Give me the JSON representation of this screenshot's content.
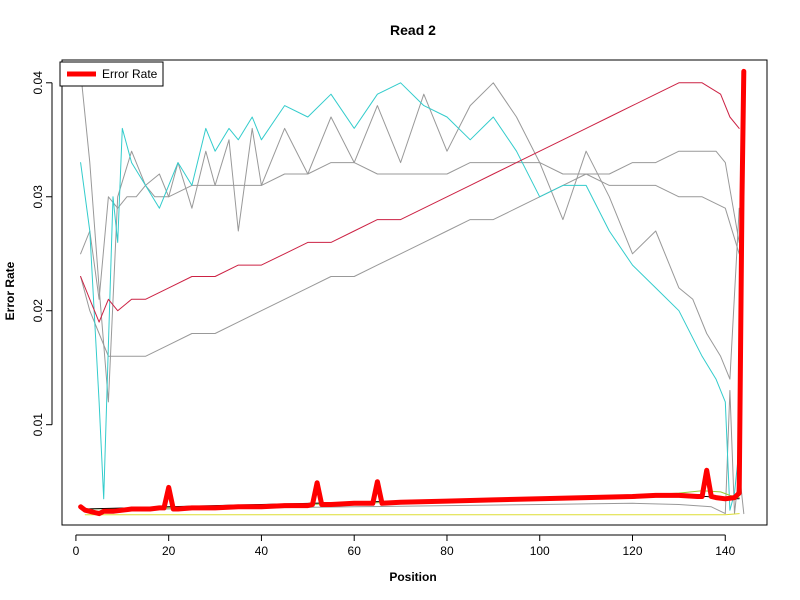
{
  "chart_data": {
    "type": "line",
    "title": "Read 2",
    "xlabel": "Position",
    "ylabel": "Error Rate",
    "xlim": [
      -3,
      149
    ],
    "ylim": [
      0.0012,
      0.042
    ],
    "xticks": [
      0,
      20,
      40,
      60,
      80,
      100,
      120,
      140
    ],
    "yticks": [
      0.01,
      0.02,
      0.03,
      0.04
    ],
    "ytick_labels": [
      "0.01",
      "0.02",
      "0.03",
      "0.04"
    ],
    "grid": false,
    "legend": {
      "position": "top-left",
      "entries": [
        {
          "label": "Error Rate",
          "color": "#ff0000"
        }
      ]
    },
    "series": [
      {
        "style": "thin",
        "color": "#999999",
        "x": [
          1,
          3,
          5,
          7,
          9,
          12,
          15,
          18,
          20,
          22,
          25,
          28,
          30,
          33,
          35,
          38,
          40,
          45,
          50,
          55,
          60,
          65,
          70,
          75,
          80,
          85,
          90,
          95,
          100,
          105,
          110,
          115,
          120,
          125,
          130,
          133,
          136,
          139,
          141,
          143
        ],
        "y": [
          0.041,
          0.033,
          0.022,
          0.012,
          0.03,
          0.034,
          0.031,
          0.032,
          0.03,
          0.033,
          0.029,
          0.034,
          0.031,
          0.035,
          0.027,
          0.036,
          0.031,
          0.036,
          0.032,
          0.037,
          0.033,
          0.038,
          0.033,
          0.039,
          0.034,
          0.038,
          0.04,
          0.037,
          0.033,
          0.028,
          0.034,
          0.03,
          0.025,
          0.027,
          0.022,
          0.021,
          0.018,
          0.016,
          0.014,
          0.029
        ]
      },
      {
        "style": "thin",
        "color": "#999999",
        "x": [
          1,
          3,
          5,
          7,
          9,
          11,
          13,
          15,
          17,
          20,
          25,
          30,
          35,
          40,
          45,
          50,
          55,
          60,
          65,
          70,
          75,
          80,
          85,
          90,
          95,
          100,
          105,
          110,
          115,
          120,
          125,
          130,
          135,
          140,
          143
        ],
        "y": [
          0.025,
          0.027,
          0.021,
          0.03,
          0.029,
          0.03,
          0.03,
          0.031,
          0.03,
          0.03,
          0.031,
          0.031,
          0.031,
          0.031,
          0.032,
          0.032,
          0.033,
          0.033,
          0.032,
          0.032,
          0.032,
          0.032,
          0.033,
          0.033,
          0.033,
          0.033,
          0.032,
          0.032,
          0.031,
          0.031,
          0.031,
          0.03,
          0.03,
          0.029,
          0.025
        ]
      },
      {
        "style": "thin",
        "color": "#999999",
        "x": [
          1,
          3,
          5,
          7,
          9,
          12,
          15,
          20,
          25,
          30,
          35,
          40,
          45,
          50,
          55,
          60,
          65,
          70,
          75,
          80,
          85,
          90,
          95,
          100,
          105,
          110,
          115,
          120,
          125,
          130,
          135,
          138,
          140,
          143
        ],
        "y": [
          0.023,
          0.02,
          0.018,
          0.016,
          0.016,
          0.016,
          0.016,
          0.017,
          0.018,
          0.018,
          0.019,
          0.02,
          0.021,
          0.022,
          0.023,
          0.023,
          0.024,
          0.025,
          0.026,
          0.027,
          0.028,
          0.028,
          0.029,
          0.03,
          0.031,
          0.032,
          0.032,
          0.033,
          0.033,
          0.034,
          0.034,
          0.034,
          0.033,
          0.026
        ]
      },
      {
        "style": "thin",
        "color": "#999999",
        "x": [
          2,
          5,
          8,
          10,
          20,
          40,
          60,
          80,
          100,
          120,
          130,
          137,
          140,
          141,
          142,
          143,
          144
        ],
        "y": [
          0.0025,
          0.0024,
          0.0024,
          0.0025,
          0.0026,
          0.0027,
          0.0028,
          0.0029,
          0.003,
          0.0031,
          0.003,
          0.0028,
          0.0022,
          0.013,
          0.0022,
          0.006,
          0.0022
        ]
      },
      {
        "style": "thin",
        "color": "#33cccc",
        "x": [
          1,
          3,
          5,
          6,
          7,
          8,
          9,
          10,
          12,
          15,
          18,
          20,
          22,
          25,
          28,
          30,
          33,
          35,
          38,
          40,
          45,
          50,
          55,
          60,
          65,
          70,
          75,
          80,
          85,
          90,
          95,
          100,
          105,
          110,
          115,
          120,
          125,
          130,
          135,
          138,
          140,
          141,
          142,
          143
        ],
        "y": [
          0.033,
          0.027,
          0.012,
          0.0035,
          0.017,
          0.03,
          0.026,
          0.036,
          0.033,
          0.031,
          0.029,
          0.031,
          0.033,
          0.031,
          0.036,
          0.034,
          0.036,
          0.035,
          0.037,
          0.035,
          0.038,
          0.037,
          0.039,
          0.036,
          0.039,
          0.04,
          0.038,
          0.037,
          0.035,
          0.037,
          0.034,
          0.03,
          0.031,
          0.031,
          0.027,
          0.024,
          0.022,
          0.02,
          0.016,
          0.014,
          0.012,
          0.0025,
          0.004,
          0.008
        ]
      },
      {
        "style": "thin",
        "color": "#cc2244",
        "x": [
          1,
          3,
          5,
          7,
          9,
          12,
          15,
          20,
          25,
          30,
          35,
          40,
          45,
          50,
          55,
          60,
          65,
          70,
          75,
          80,
          85,
          90,
          95,
          100,
          105,
          110,
          115,
          120,
          125,
          130,
          135,
          139,
          141,
          143
        ],
        "y": [
          0.023,
          0.021,
          0.019,
          0.021,
          0.02,
          0.021,
          0.021,
          0.022,
          0.023,
          0.023,
          0.024,
          0.024,
          0.025,
          0.026,
          0.026,
          0.027,
          0.028,
          0.028,
          0.029,
          0.03,
          0.031,
          0.032,
          0.033,
          0.034,
          0.035,
          0.036,
          0.037,
          0.038,
          0.039,
          0.04,
          0.04,
          0.039,
          0.037,
          0.036
        ]
      },
      {
        "style": "thin",
        "color": "#99cc33",
        "x": [
          2,
          20,
          40,
          60,
          80,
          100,
          120,
          130,
          135,
          139,
          141,
          143
        ],
        "y": [
          0.0026,
          0.0027,
          0.0029,
          0.0031,
          0.0033,
          0.0036,
          0.0038,
          0.004,
          0.0042,
          0.0041,
          0.0038,
          0.0036
        ]
      },
      {
        "style": "thin",
        "color": "#dddd33",
        "x": [
          2,
          40,
          80,
          120,
          140,
          143
        ],
        "y": [
          0.0021,
          0.0021,
          0.0021,
          0.0021,
          0.0021,
          0.0022
        ]
      },
      {
        "style": "thin",
        "color": "#000000",
        "x": [
          2,
          20,
          40,
          60,
          80,
          100,
          120,
          130,
          136,
          140,
          143
        ],
        "y": [
          0.0026,
          0.0028,
          0.003,
          0.0032,
          0.0034,
          0.0036,
          0.0037,
          0.0037,
          0.0037,
          0.0035,
          0.0035
        ]
      },
      {
        "name": "Error Rate",
        "style": "thick",
        "color": "#ff0000",
        "x": [
          1,
          2,
          3,
          4,
          5,
          6,
          8,
          10,
          12,
          14,
          16,
          18,
          19,
          20,
          21,
          22,
          25,
          30,
          35,
          40,
          45,
          50,
          51,
          52,
          53,
          55,
          60,
          64,
          65,
          66,
          70,
          80,
          90,
          100,
          110,
          120,
          125,
          130,
          134,
          135,
          136,
          137,
          138,
          140,
          142,
          143,
          143.6,
          144
        ],
        "y": [
          0.0028,
          0.0025,
          0.0024,
          0.0023,
          0.0022,
          0.0024,
          0.0024,
          0.0025,
          0.0026,
          0.0026,
          0.0026,
          0.0027,
          0.0027,
          0.0045,
          0.0026,
          0.0026,
          0.0027,
          0.0027,
          0.0028,
          0.0028,
          0.0029,
          0.0029,
          0.003,
          0.0049,
          0.003,
          0.003,
          0.0031,
          0.0031,
          0.005,
          0.0031,
          0.0032,
          0.0033,
          0.0034,
          0.0035,
          0.0036,
          0.0037,
          0.0038,
          0.0038,
          0.0037,
          0.0037,
          0.006,
          0.0037,
          0.0036,
          0.0035,
          0.0036,
          0.004,
          0.03,
          0.041
        ]
      }
    ]
  }
}
